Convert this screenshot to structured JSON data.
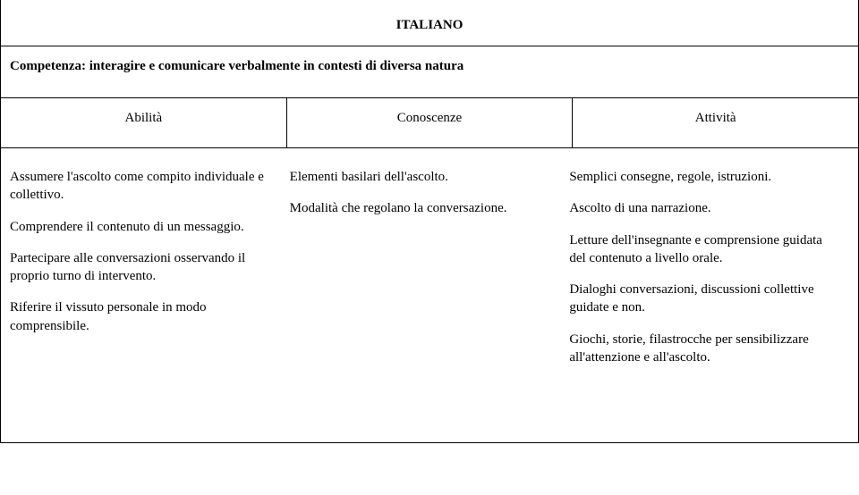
{
  "title": "ITALIANO",
  "competenza": "Competenza: interagire e comunicare verbalmente in contesti di diversa natura",
  "headers": {
    "col1": "Abilità",
    "col2": "Conoscenze",
    "col3": "Attività"
  },
  "abilities": {
    "p1": "Assumere l'ascolto come compito individuale e collettivo.",
    "p2": "Comprendere il contenuto di un messaggio.",
    "p3": "Partecipare alle conversazioni osservando il proprio turno di intervento.",
    "p4": "Riferire il vissuto personale in modo comprensibile."
  },
  "knowledge": {
    "p1": "Elementi basilari dell'ascolto.",
    "p2": "Modalità che regolano la conversazione."
  },
  "activities": {
    "p1": "Semplici consegne, regole, istruzioni.",
    "p2": "Ascolto di una narrazione.",
    "p3": "Letture dell'insegnante e comprensione guidata del contenuto a livello orale.",
    "p4": "Dialoghi conversazioni, discussioni collettive guidate e non.",
    "p5": "Giochi, storie, filastrocche per sensibilizzare all'attenzione e all'ascolto."
  },
  "style": {
    "font_family": "Times New Roman",
    "title_fontsize": 15,
    "body_fontsize": 15,
    "border_color": "#000000",
    "background_color": "#ffffff",
    "text_color": "#000000"
  }
}
